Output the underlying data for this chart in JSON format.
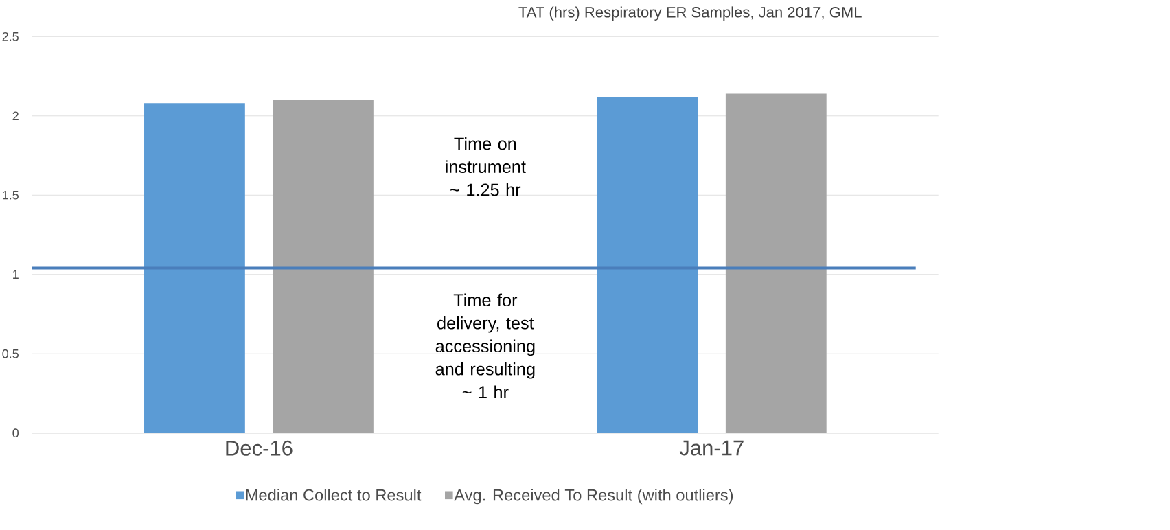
{
  "chart_data": {
    "type": "bar",
    "title": "TAT (hrs) Respiratory ER Samples, Jan 2017, GML",
    "categories": [
      "Dec-16",
      "Jan-17"
    ],
    "series": [
      {
        "name": "Median Collect to Result",
        "color": "#5b9bd5",
        "values": [
          2.08,
          2.12
        ]
      },
      {
        "name": "Avg. Received To Result (with outliers)",
        "color": "#a5a5a5",
        "values": [
          2.1,
          2.14
        ]
      }
    ],
    "ylim": [
      0,
      2.5
    ],
    "yticks": [
      0,
      0.5,
      1,
      1.5,
      2,
      2.5
    ],
    "grid": "y",
    "legend": "bottom",
    "ref_lines": [
      {
        "axis": "y",
        "value": 1.04,
        "color": "#4a7ebb"
      }
    ],
    "annotations": [
      "Time on instrument ~ 1.25 hr",
      "Time for delivery, test accessioning and resulting ~ 1 hr"
    ]
  }
}
